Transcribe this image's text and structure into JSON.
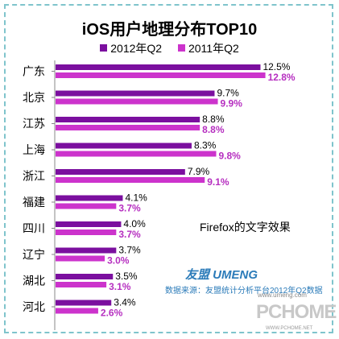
{
  "chart_data": {
    "type": "bar",
    "orientation": "horizontal",
    "title": "iOS用户地理分布TOP10",
    "categories": [
      "广东",
      "北京",
      "江苏",
      "上海",
      "浙江",
      "福建",
      "四川",
      "辽宁",
      "湖北",
      "河北"
    ],
    "series": [
      {
        "name": "2012年Q2",
        "color": "#7b0f9f",
        "label_color": "#000000",
        "values": [
          12.5,
          9.7,
          8.8,
          8.3,
          7.9,
          4.1,
          4.0,
          3.7,
          3.5,
          3.4
        ],
        "labels": [
          "12.5%",
          "9.7%",
          "8.8%",
          "8.3%",
          "7.9%",
          "4.1%",
          "4.0%",
          "3.7%",
          "3.5%",
          "3.4%"
        ]
      },
      {
        "name": "2011年Q2",
        "color": "#cc33cc",
        "label_color": "#b62fc0",
        "values": [
          12.8,
          9.9,
          8.8,
          9.8,
          9.1,
          3.7,
          3.7,
          3.0,
          3.1,
          2.6
        ],
        "labels": [
          "12.8%",
          "9.9%",
          "8.8%",
          "9.8%",
          "9.1%",
          "3.7%",
          "3.7%",
          "3.0%",
          "3.1%",
          "2.6%"
        ]
      }
    ],
    "xlim": [
      0,
      14
    ],
    "grid": false,
    "legend_position": "top-center"
  },
  "note": "Firefox的文字效果",
  "brand": "友盟 UMENG",
  "source": "数据来源：友盟统计分析平台2012年Q2数据",
  "source_url": "www.umeng.com",
  "watermark": "PCHOME",
  "watermark_url": "WWW.PCHOME.NET"
}
